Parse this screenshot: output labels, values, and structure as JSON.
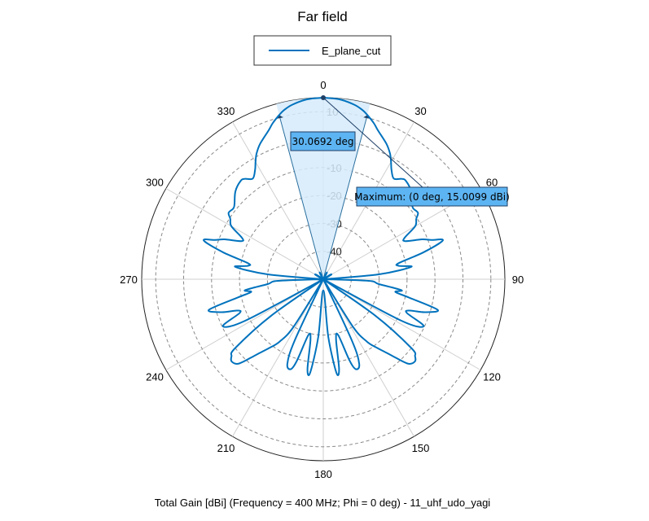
{
  "chart_data": {
    "type": "polar-line",
    "title": "Far field",
    "caption": "Total Gain [dBi] (Frequency = 400 MHz; Phi = 0 deg) - 11_uhf_udo_yagi",
    "legend": {
      "position": "top-center",
      "entries": [
        "E_plane_cut"
      ]
    },
    "angular_axis": {
      "zero_at": "top",
      "direction": "clockwise",
      "tick_labels": [
        "0",
        "30",
        "60",
        "90",
        "120",
        "150",
        "180",
        "210",
        "240",
        "270",
        "300",
        "330"
      ]
    },
    "radial_axis": {
      "range": [
        -50,
        15.0099
      ],
      "ticks": [
        10,
        0,
        -10,
        -20,
        -30,
        -40
      ],
      "tick_labels": [
        "10",
        "0",
        "-10",
        "-20",
        "-30",
        "-40"
      ],
      "grid": "dashed"
    },
    "series": [
      {
        "name": "E_plane_cut",
        "color": "#0072bd",
        "angle_deg": [
          0,
          5,
          10,
          13,
          15,
          18,
          20,
          25,
          28,
          30,
          32,
          35,
          38,
          40,
          45,
          50,
          52,
          55,
          57,
          60,
          63,
          65,
          68,
          70,
          72,
          75,
          78,
          80,
          82,
          85,
          88,
          90,
          92,
          95,
          98,
          100,
          102,
          105,
          108,
          110,
          112,
          115,
          118,
          120,
          122,
          125,
          128,
          130,
          132,
          135,
          138,
          140,
          142,
          145,
          148,
          150,
          152,
          155,
          157,
          160,
          162,
          165,
          168,
          170,
          172,
          175,
          180,
          185,
          188,
          190,
          192,
          195,
          198,
          200,
          203,
          205,
          208,
          210,
          212,
          215,
          218,
          220,
          222,
          225,
          228,
          230,
          232,
          235,
          238,
          240,
          242,
          245,
          248,
          250,
          252,
          255,
          258,
          260,
          262,
          265,
          268,
          270,
          272,
          275,
          278,
          280,
          282,
          285,
          288,
          290,
          292,
          295,
          297,
          300,
          303,
          305,
          308,
          310,
          315,
          320,
          322,
          325,
          328,
          330,
          332,
          335,
          340,
          342,
          345,
          347,
          350,
          355,
          360
        ],
        "gain_dbi": [
          15.0,
          14.7,
          13.5,
          12.2,
          10.9,
          8.7,
          6.9,
          3.5,
          0.9,
          -1.5,
          -3.9,
          -6.0,
          -4.4,
          -4.0,
          -5.5,
          -8.5,
          -9.0,
          -8.6,
          -10.3,
          -12.0,
          -17.3,
          -17.7,
          -11.9,
          -8.9,
          -5.0,
          -13.0,
          -22.5,
          -22.5,
          -18.2,
          -30.0,
          -50.0,
          -49.0,
          -33.7,
          -30.0,
          -21.7,
          -23.8,
          -18.8,
          -7.6,
          -11.8,
          -17.2,
          -17.7,
          -10.3,
          -18.4,
          -50.0,
          -50.0,
          -27.2,
          -10.0,
          -7.1,
          -5.9,
          -7.3,
          -13.1,
          -16.3,
          -18.9,
          -22.7,
          -29.9,
          -50.0,
          -50.0,
          -25.7,
          -17.1,
          -15.7,
          -19.0,
          -29.2,
          -28.0,
          -17.4,
          -16.2,
          -29.2,
          -46.0,
          -29.2,
          -16.2,
          -17.4,
          -28.0,
          -29.2,
          -19.0,
          -15.7,
          -17.1,
          -25.7,
          -50.0,
          -50.0,
          -29.9,
          -22.7,
          -18.9,
          -16.3,
          -13.1,
          -7.3,
          -5.9,
          -7.1,
          -10.0,
          -27.2,
          -50.0,
          -50.0,
          -18.4,
          -10.3,
          -17.7,
          -17.2,
          -11.8,
          -7.6,
          -18.8,
          -23.8,
          -21.7,
          -30.0,
          -33.7,
          -49.0,
          -50.0,
          -30.0,
          -18.2,
          -22.5,
          -22.5,
          -13.0,
          -5.0,
          -8.9,
          -11.9,
          -17.7,
          -17.3,
          -12.0,
          -10.3,
          -8.6,
          -9.0,
          -8.5,
          -5.5,
          -4.0,
          -4.4,
          -6.0,
          -3.9,
          -1.5,
          0.9,
          3.5,
          6.9,
          8.7,
          10.9,
          12.2,
          13.5,
          14.7,
          15.0
        ]
      }
    ],
    "annotations": {
      "beamwidth": {
        "label": "30.0692 deg",
        "start_deg": -15.03,
        "end_deg": 15.03
      },
      "maximum": {
        "label": "Maximum: (0 deg, 15.0099 dBi)",
        "angle_deg": 0,
        "value": 15.0099
      }
    }
  }
}
